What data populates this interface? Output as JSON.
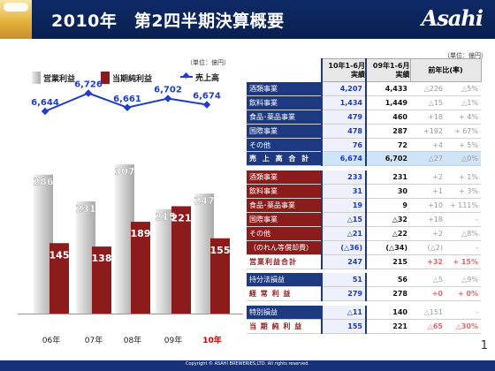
{
  "header": {
    "title": "2010年　第2四半期決算概要",
    "logo": "Asahi"
  },
  "unit_left": "（単位：億円）",
  "unit_right": "（単位：億円）",
  "legend": {
    "op": "営業利益",
    "net": "当期純利益",
    "sales": "売上高"
  },
  "chart_data": {
    "type": "bar",
    "categories": [
      "06年",
      "07年",
      "08年",
      "09年",
      "10年"
    ],
    "series": [
      {
        "name": "営業利益",
        "values": [
          286,
          231,
          307,
          215,
          247
        ],
        "color": "#b0b0b0"
      },
      {
        "name": "当期純利益",
        "values": [
          145,
          138,
          189,
          221,
          155
        ],
        "color": "#8c1c1c"
      },
      {
        "name": "売上高",
        "type": "line",
        "values": [
          6644,
          6726,
          6661,
          6702,
          6674
        ],
        "labels": [
          "6,644",
          "6,726",
          "6,661",
          "6,702",
          "6,674"
        ],
        "color": "#1e3ec8"
      }
    ],
    "highlight_category": "10年"
  },
  "table": {
    "headers": {
      "a": "10年1-6月\n実績",
      "b": "09年1-6月\n実績",
      "diff": "前年比(率)"
    },
    "sales_rows": [
      {
        "label": "酒類事業",
        "a": "4,207",
        "b": "4,433",
        "d": "△226",
        "p": "△5%"
      },
      {
        "label": "飲料事業",
        "a": "1,434",
        "b": "1,449",
        "d": "△15",
        "p": "△1%"
      },
      {
        "label": "食品･薬品事業",
        "a": "479",
        "b": "460",
        "d": "+18",
        "p": "+ 4%"
      },
      {
        "label": "国際事業",
        "a": "478",
        "b": "287",
        "d": "+192",
        "p": "+ 67%"
      },
      {
        "label": "その他",
        "a": "76",
        "b": "72",
        "d": "+4",
        "p": "+ 5%"
      }
    ],
    "sales_total": {
      "label": "売 上 高 合 計",
      "a": "6,674",
      "b": "6,702",
      "d": "△27",
      "p": "△0%"
    },
    "profit_rows": [
      {
        "label": "酒類事業",
        "a": "233",
        "b": "231",
        "d": "+2",
        "p": "+ 1%"
      },
      {
        "label": "飲料事業",
        "a": "31",
        "b": "30",
        "d": "+1",
        "p": "+ 3%"
      },
      {
        "label": "食品･薬品事業",
        "a": "19",
        "b": "9",
        "d": "+10",
        "p": "+ 111%"
      },
      {
        "label": "国際事業",
        "a": "△15",
        "b": "△32",
        "d": "+18",
        "p": "-"
      },
      {
        "label": "その他",
        "a": "△21",
        "b": "△22",
        "d": "+2",
        "p": "△8%"
      },
      {
        "label": "（のれん等償却費）",
        "a": "(△36)",
        "b": "(△34)",
        "d": "(△2)",
        "p": "-"
      }
    ],
    "op_total": {
      "label": "営業利益合計",
      "a": "247",
      "b": "215",
      "d": "+32",
      "p": "+ 15%"
    },
    "extra_row1": {
      "label": "持分法損益",
      "a": "51",
      "b": "56",
      "d": "△5",
      "p": "△9%"
    },
    "ordinary": {
      "label": "経 常 利 益",
      "a": "279",
      "b": "278",
      "d": "+0",
      "p": "+ 0%"
    },
    "extra_row2": {
      "label": "特別損益",
      "a": "△11",
      "b": "140",
      "d": "△151",
      "p": "-"
    },
    "net": {
      "label": "当 期 純 利 益",
      "a": "155",
      "b": "221",
      "d": "△65",
      "p": "△30%"
    }
  },
  "footer": {
    "copyright": "Copyright © ASAHI BREWERIES,LTD. All rights reserved.",
    "page": "1"
  }
}
